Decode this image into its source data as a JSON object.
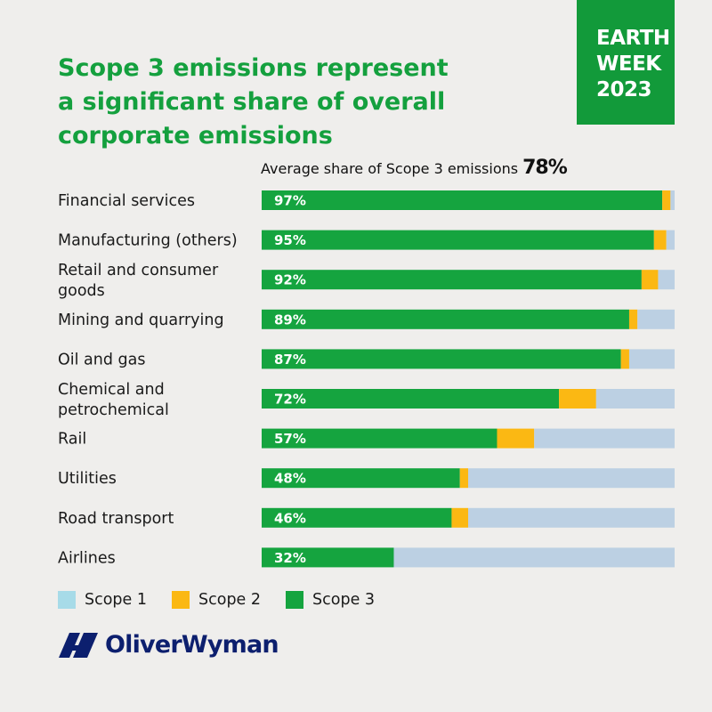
{
  "badge": {
    "line1": "EARTH",
    "line2": "WEEK",
    "line3": "2023"
  },
  "title": "Scope 3 emissions represent\na significant share of overall\ncorporate emissions",
  "average": {
    "label": "Average share of Scope 3 emissions",
    "value": "78%"
  },
  "colors": {
    "scope1": "#bcd0e3",
    "scope2": "#fbb813",
    "scope3": "#15a43f",
    "legend_scope1": "#a7dbe8",
    "badge": "#129a3a",
    "title": "#14a03e",
    "logo": "#0c1f6e"
  },
  "chart_data": {
    "type": "bar",
    "orientation": "horizontal",
    "stacked": true,
    "categories": [
      [
        "Financial services"
      ],
      [
        "Manufacturing (others)"
      ],
      [
        "Retail and consumer",
        "goods"
      ],
      [
        "Mining and quarrying"
      ],
      [
        "Oil and gas"
      ],
      [
        "Chemical and",
        "petrochemical"
      ],
      [
        "Rail"
      ],
      [
        "Utilities"
      ],
      [
        "Road transport"
      ],
      [
        "Airlines"
      ]
    ],
    "series": [
      {
        "name": "Scope 3",
        "values": [
          97,
          95,
          92,
          89,
          87,
          72,
          57,
          48,
          46,
          32
        ]
      },
      {
        "name": "Scope 2",
        "values": [
          2,
          3,
          4,
          2,
          2,
          9,
          9,
          2,
          4,
          0
        ]
      },
      {
        "name": "Scope 1",
        "values": [
          1,
          2,
          4,
          9,
          11,
          19,
          34,
          50,
          50,
          68
        ]
      }
    ],
    "value_labels": [
      "97%",
      "95%",
      "92%",
      "89%",
      "87%",
      "72%",
      "57%",
      "48%",
      "46%",
      "32%"
    ],
    "xlim": [
      0,
      100
    ]
  },
  "legend": [
    {
      "label": "Scope 1",
      "color": "#a7dbe8"
    },
    {
      "label": "Scope 2",
      "color": "#fbb813"
    },
    {
      "label": "Scope 3",
      "color": "#15a43f"
    }
  ],
  "logo": {
    "text": "OliverWyman"
  }
}
